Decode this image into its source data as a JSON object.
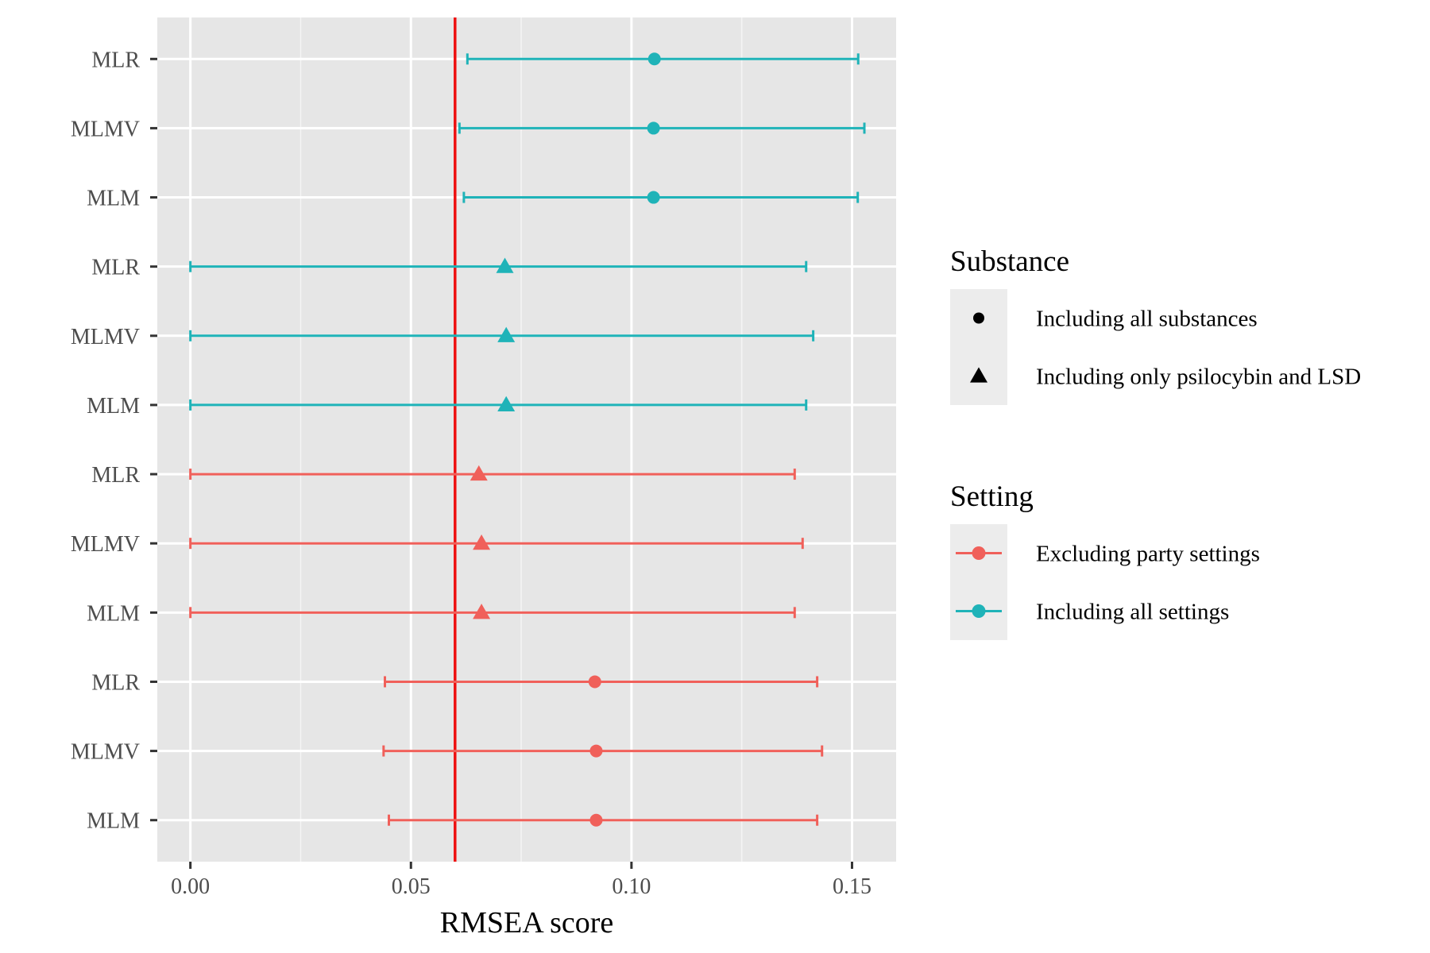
{
  "chart_data": {
    "type": "scatter",
    "xlabel": "RMSEA score",
    "ylabel": "",
    "xlim": [
      -0.0075,
      0.16
    ],
    "x_ticks": [
      0.0,
      0.05,
      0.1,
      0.15
    ],
    "x_tick_labels": [
      "0.00",
      "0.05",
      "0.10",
      "0.15"
    ],
    "grid": true,
    "reference_line": {
      "x": 0.06,
      "color": "#ee1111"
    },
    "legend_position": "right",
    "legends": [
      {
        "title": "Substance",
        "entries": [
          {
            "label": "Including all substances",
            "shape": "circle"
          },
          {
            "label": "Including only psilocybin and LSD",
            "shape": "triangle"
          }
        ]
      },
      {
        "title": "Setting",
        "entries": [
          {
            "label": "Excluding party settings",
            "color": "#f0605a"
          },
          {
            "label": "Including all settings",
            "color": "#1fb3b8"
          }
        ]
      }
    ],
    "rows": [
      {
        "label": "MLR",
        "estimate": 0.1052,
        "lower": 0.0628,
        "upper": 0.1514,
        "setting": "Including all settings",
        "substance": "Including all substances"
      },
      {
        "label": "MLMV",
        "estimate": 0.105,
        "lower": 0.061,
        "upper": 0.1528,
        "setting": "Including all settings",
        "substance": "Including all substances"
      },
      {
        "label": "MLM",
        "estimate": 0.105,
        "lower": 0.062,
        "upper": 0.1513,
        "setting": "Including all settings",
        "substance": "Including all substances"
      },
      {
        "label": "MLR",
        "estimate": 0.0713,
        "lower": 0.0,
        "upper": 0.1396,
        "setting": "Including all settings",
        "substance": "Including only psilocybin and LSD"
      },
      {
        "label": "MLMV",
        "estimate": 0.0716,
        "lower": 0.0,
        "upper": 0.1412,
        "setting": "Including all settings",
        "substance": "Including only psilocybin and LSD"
      },
      {
        "label": "MLM",
        "estimate": 0.0716,
        "lower": 0.0,
        "upper": 0.1396,
        "setting": "Including all settings",
        "substance": "Including only psilocybin and LSD"
      },
      {
        "label": "MLR",
        "estimate": 0.0654,
        "lower": 0.0,
        "upper": 0.137,
        "setting": "Excluding party settings",
        "substance": "Including only psilocybin and LSD"
      },
      {
        "label": "MLMV",
        "estimate": 0.066,
        "lower": 0.0,
        "upper": 0.1388,
        "setting": "Excluding party settings",
        "substance": "Including only psilocybin and LSD"
      },
      {
        "label": "MLM",
        "estimate": 0.066,
        "lower": 0.0,
        "upper": 0.137,
        "setting": "Excluding party settings",
        "substance": "Including only psilocybin and LSD"
      },
      {
        "label": "MLR",
        "estimate": 0.0917,
        "lower": 0.0441,
        "upper": 0.1421,
        "setting": "Excluding party settings",
        "substance": "Including all substances"
      },
      {
        "label": "MLMV",
        "estimate": 0.092,
        "lower": 0.0438,
        "upper": 0.1432,
        "setting": "Excluding party settings",
        "substance": "Including all substances"
      },
      {
        "label": "MLM",
        "estimate": 0.092,
        "lower": 0.045,
        "upper": 0.1421,
        "setting": "Excluding party settings",
        "substance": "Including all substances"
      }
    ]
  }
}
